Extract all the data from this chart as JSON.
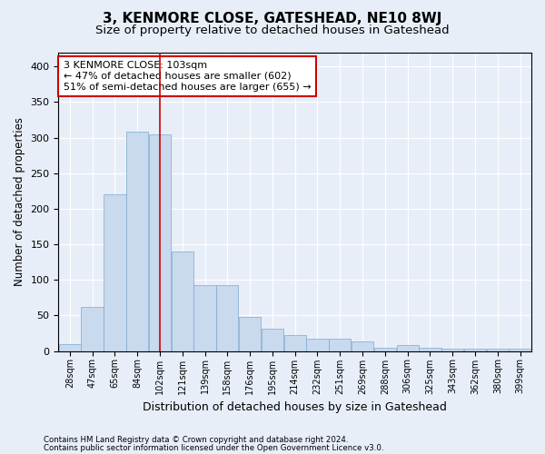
{
  "title": "3, KENMORE CLOSE, GATESHEAD, NE10 8WJ",
  "subtitle": "Size of property relative to detached houses in Gateshead",
  "xlabel": "Distribution of detached houses by size in Gateshead",
  "ylabel": "Number of detached properties",
  "bar_color": "#c9d9ee",
  "bar_edge_color": "#7aaacf",
  "vline_color": "#cc0000",
  "vline_x_index": 4,
  "annotation_text": "3 KENMORE CLOSE: 103sqm\n← 47% of detached houses are smaller (602)\n51% of semi-detached houses are larger (655) →",
  "annotation_box_color": "#ffffff",
  "annotation_box_edge": "#cc0000",
  "footer_line1": "Contains HM Land Registry data © Crown copyright and database right 2024.",
  "footer_line2": "Contains public sector information licensed under the Open Government Licence v3.0.",
  "background_color": "#e8eef8",
  "categories": [
    "28sqm",
    "47sqm",
    "65sqm",
    "84sqm",
    "102sqm",
    "121sqm",
    "139sqm",
    "158sqm",
    "176sqm",
    "195sqm",
    "214sqm",
    "232sqm",
    "251sqm",
    "269sqm",
    "288sqm",
    "306sqm",
    "325sqm",
    "343sqm",
    "362sqm",
    "380sqm",
    "399sqm"
  ],
  "values": [
    10,
    62,
    220,
    308,
    305,
    140,
    93,
    93,
    48,
    32,
    22,
    18,
    18,
    14,
    5,
    8,
    5,
    4,
    4,
    4,
    4
  ],
  "ylim": [
    0,
    420
  ],
  "yticks": [
    0,
    50,
    100,
    150,
    200,
    250,
    300,
    350,
    400
  ],
  "grid_color": "#ffffff",
  "title_fontsize": 11,
  "subtitle_fontsize": 9.5,
  "xlabel_fontsize": 9,
  "ylabel_fontsize": 8.5
}
